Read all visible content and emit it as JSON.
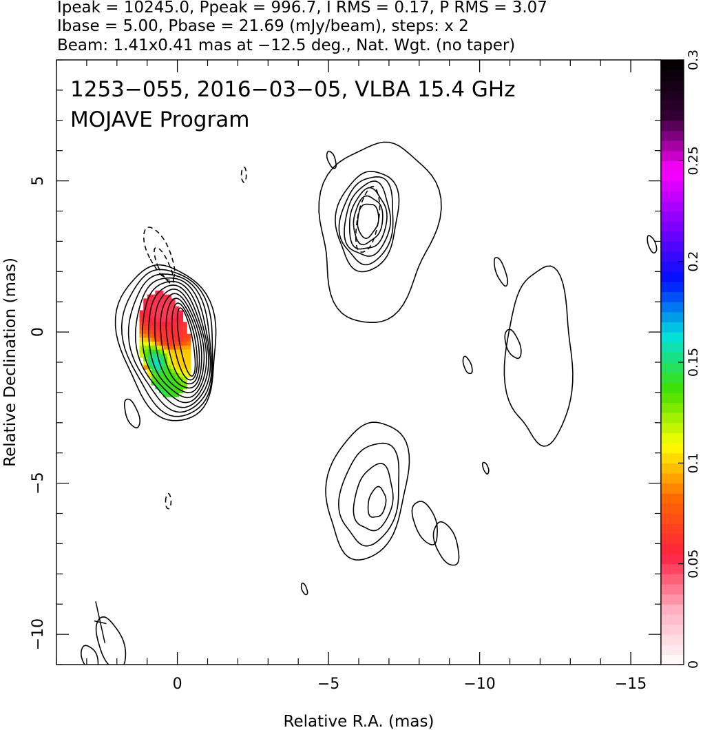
{
  "header": {
    "line1": "Ipeak = 10245.0, Ppeak = 996.7, I RMS = 0.17, P RMS = 3.07",
    "line2": "Ibase = 5.00, Pbase = 21.69 (mJy/beam), steps: x 2",
    "line3": "Beam: 1.41x0.41 mas at −12.5 deg., Nat. Wgt. (no taper)"
  },
  "chart_data": {
    "type": "heatmap",
    "title": "",
    "annotations": [
      "1253−055, 2016−03−05, VLBA 15.4 GHz",
      "MOJAVE Program"
    ],
    "xlabel": "Relative R.A. (mas)",
    "ylabel": "Relative Declination (mas)",
    "xlim": [
      4,
      -16
    ],
    "ylim": [
      -11,
      9
    ],
    "x_ticks": [
      0,
      -5,
      -10,
      -15
    ],
    "x_tick_labels": [
      "0",
      "−5",
      "−10",
      "−15"
    ],
    "y_ticks": [
      5,
      0,
      -5,
      -10
    ],
    "y_tick_labels": [
      "5",
      "0",
      "−5",
      "−10"
    ],
    "colorbar": {
      "range": [
        0,
        0.3
      ],
      "ticks": [
        0,
        0.05,
        0.1,
        0.15,
        0.2,
        0.25,
        0.3
      ],
      "tick_labels": [
        "0",
        "0.05",
        "0.1",
        "0.15",
        "0.2",
        "0.25",
        "0.3"
      ],
      "colors": [
        "#ffffff",
        "#ffb0c0",
        "#ff2040",
        "#ff6600",
        "#ffff00",
        "#40e000",
        "#00e0e0",
        "#0010ff",
        "#8000ff",
        "#ff00ff",
        "#300030",
        "#000000"
      ]
    },
    "contour_levels": [
      "Ibase × 2^n"
    ],
    "contours": {
      "core": {
        "cx": 0.3,
        "cy": -0.3,
        "rx": 1.6,
        "ry": 2.6,
        "levels": 11,
        "rotation": -10
      },
      "upper_jet": {
        "cx": -6.3,
        "cy": 3.6,
        "rx": 1.9,
        "ry": 3.0,
        "levels": 7
      },
      "lower_jet": {
        "cx": -6.3,
        "cy": -5.2,
        "rx": 1.3,
        "ry": 2.3,
        "levels": 4
      },
      "far_blob": {
        "cx": -12.0,
        "cy": -0.8,
        "rx": 1.1,
        "ry": 2.9,
        "levels": 1
      }
    },
    "fractional_polarization": [
      {
        "x": 0.45,
        "y": 0.7,
        "value": 0.05
      },
      {
        "x": 0.25,
        "y": 0.0,
        "value": 0.06
      },
      {
        "x": -0.05,
        "y": -0.9,
        "value": 0.1
      },
      {
        "x": 0.4,
        "y": -1.5,
        "value": 0.14
      },
      {
        "x": 0.8,
        "y": -1.0,
        "value": 0.16
      },
      {
        "x": 0.9,
        "y": -2.0,
        "value": 0.15
      },
      {
        "x": 1.2,
        "y": -1.2,
        "value": 0.08
      }
    ],
    "beam": {
      "major_mas": 1.41,
      "minor_mas": 0.41,
      "pa_deg": -12.5
    }
  }
}
